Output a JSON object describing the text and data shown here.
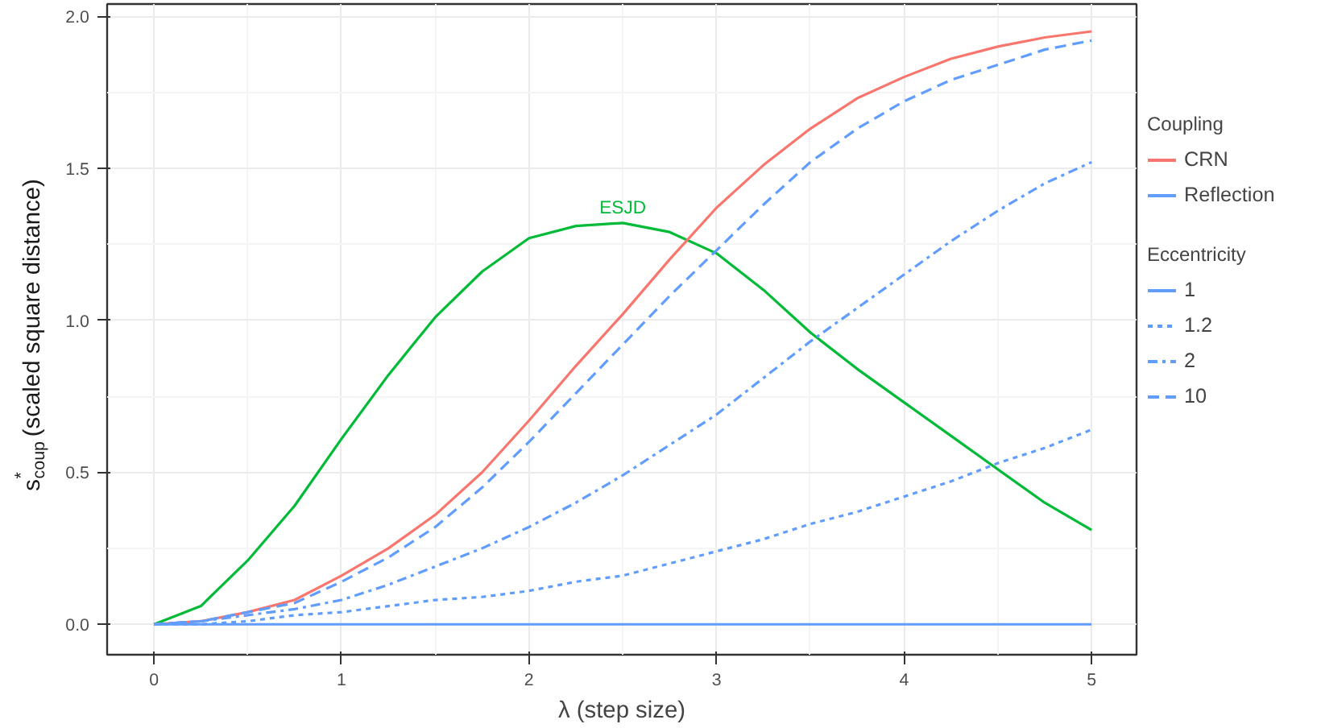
{
  "chart_data": {
    "type": "line",
    "xlabel": "λ (step size)",
    "ylabel": "s$^{*}$$_{coup}$ (scaled square distance)",
    "legend_title": [
      "Coupling",
      "Eccentricity"
    ],
    "annotations": [
      "Reflection"
    ],
    "x": [
      0,
      0.25,
      0.5,
      0.75,
      1,
      1.25,
      1.5,
      1.75,
      2,
      2.25,
      2.5,
      2.75,
      3,
      3.25,
      3.5,
      3.75,
      4,
      4.25,
      4.5,
      4.75,
      5
    ],
    "series": [
      {
        "name": "ESJD",
        "color": "#00ba38",
        "line_style": "solid",
        "values": [
          0,
          0.06,
          0.21,
          0.39,
          0.61,
          0.82,
          1.01,
          1.16,
          1.27,
          1.31,
          1.32,
          1.29,
          1.22,
          1.1,
          0.96,
          0.84,
          0.73,
          0.62,
          0.51,
          0.4,
          0.31
        ]
      },
      {
        "name": "CRN",
        "color": "#f8766d",
        "line_style": "solid",
        "values": [
          0,
          0.01,
          0.04,
          0.08,
          0.16,
          0.25,
          0.36,
          0.5,
          0.67,
          0.85,
          1.02,
          1.2,
          1.37,
          1.51,
          1.63,
          1.73,
          1.8,
          1.86,
          1.9,
          1.93,
          1.95
        ]
      },
      {
        "name": "1",
        "color": "#619cff",
        "line_style": "solid",
        "values": [
          0,
          0,
          0,
          0,
          0,
          0,
          0,
          0,
          0,
          0,
          0,
          0,
          0,
          0,
          0,
          0,
          0,
          0,
          0,
          0,
          0
        ]
      },
      {
        "name": "1.2",
        "color": "#619cff",
        "line_style": "dotted",
        "values": [
          0,
          0.0,
          0.01,
          0.03,
          0.04,
          0.06,
          0.08,
          0.09,
          0.11,
          0.14,
          0.16,
          0.2,
          0.24,
          0.28,
          0.33,
          0.37,
          0.42,
          0.47,
          0.53,
          0.58,
          0.64
        ]
      },
      {
        "name": "2",
        "color": "#619cff",
        "line_style": "dashdot",
        "values": [
          0,
          0.01,
          0.03,
          0.05,
          0.08,
          0.13,
          0.19,
          0.25,
          0.32,
          0.4,
          0.49,
          0.59,
          0.69,
          0.81,
          0.93,
          1.04,
          1.15,
          1.26,
          1.36,
          1.45,
          1.52
        ]
      },
      {
        "name": "10",
        "color": "#619cff",
        "line_style": "dashed",
        "values": [
          0,
          0.01,
          0.04,
          0.07,
          0.14,
          0.22,
          0.32,
          0.45,
          0.6,
          0.76,
          0.92,
          1.08,
          1.23,
          1.38,
          1.52,
          1.63,
          1.72,
          1.79,
          1.84,
          1.89,
          1.92
        ]
      }
    ],
    "xlim": [
      -0.25,
      5.24
    ],
    "ylim": [
      -0.1,
      2.04
    ],
    "xticks": [
      0,
      1,
      2,
      3,
      4,
      5
    ],
    "yticks": [
      {
        "value": 0,
        "label": "0.0"
      },
      {
        "value": 0.5,
        "label": "0.5"
      },
      {
        "value": 1,
        "label": "1.0"
      },
      {
        "value": 1.5,
        "label": "1.5"
      },
      {
        "value": 2,
        "label": "2.0"
      }
    ],
    "grid": true,
    "legend": "right"
  }
}
